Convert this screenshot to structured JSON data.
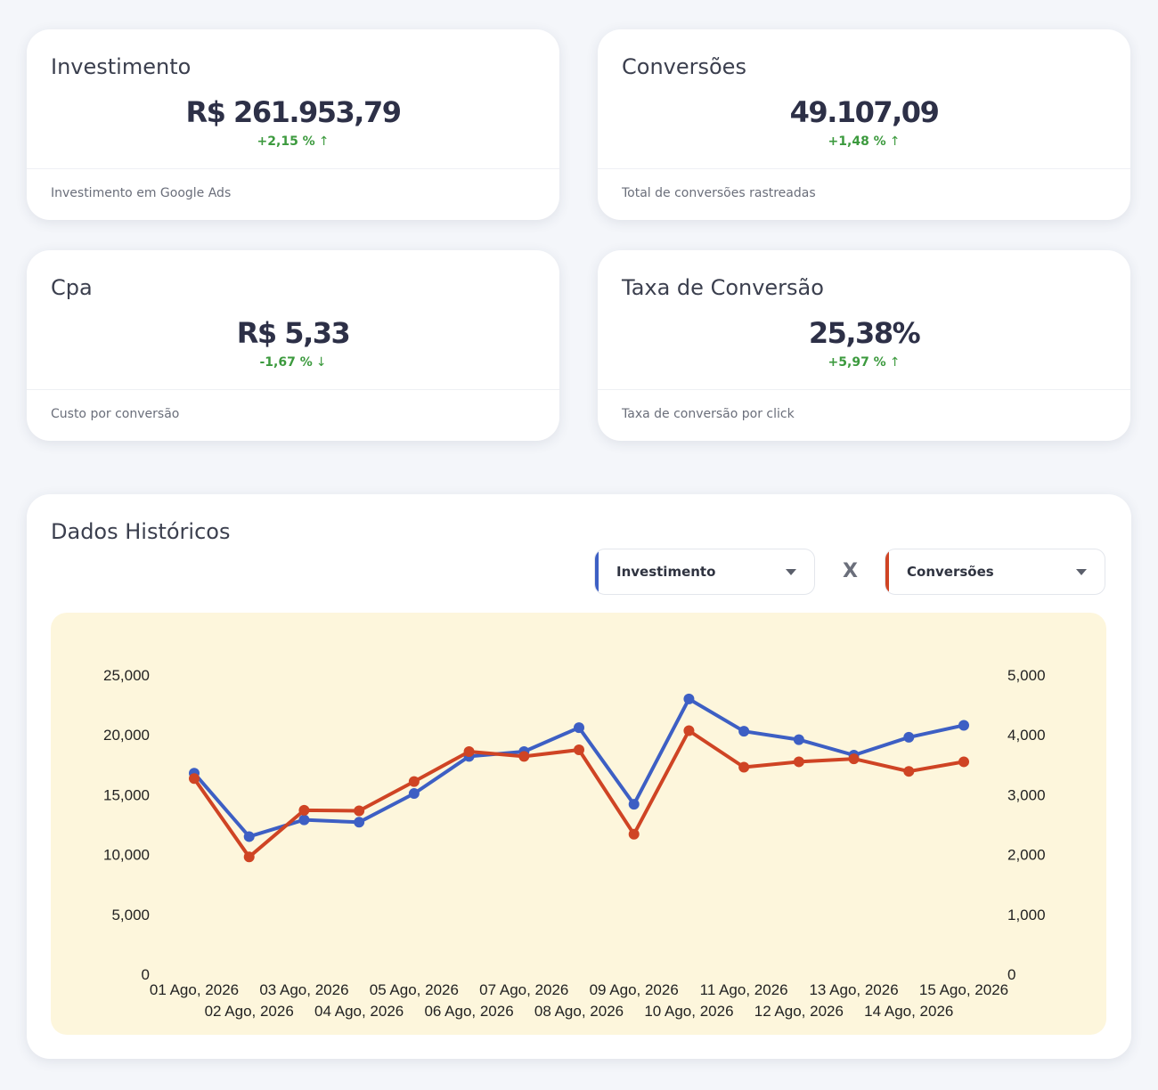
{
  "kpis": [
    {
      "title": "Investimento",
      "value": "R$ 261.953,79",
      "delta": "+2,15 %",
      "arrow": "↑",
      "footer": "Investimento em Google Ads"
    },
    {
      "title": "Conversões",
      "value": "49.107,09",
      "delta": "+1,48 %",
      "arrow": "↑",
      "footer": "Total de conversões rastreadas"
    },
    {
      "title": "Cpa",
      "value": "R$ 5,33",
      "delta": "-1,67 %",
      "arrow": "↓",
      "footer": "Custo por conversão"
    },
    {
      "title": "Taxa de Conversão",
      "value": "25,38%",
      "delta": "+5,97 %",
      "arrow": "↑",
      "footer": "Taxa de conversão por click"
    }
  ],
  "history": {
    "title": "Dados Históricos",
    "select_left": "Investimento",
    "separator": "X",
    "select_right": "Conversões"
  },
  "colors": {
    "left_series": "#3d5fc4",
    "right_series": "#cf4424",
    "positive": "#3c9a3e",
    "chart_bg": "#fdf6dc"
  },
  "chart_data": {
    "type": "line",
    "x": [
      "01 Ago, 2026",
      "02 Ago, 2026",
      "03 Ago, 2026",
      "04 Ago, 2026",
      "05 Ago, 2026",
      "06 Ago, 2026",
      "07 Ago, 2026",
      "08 Ago, 2026",
      "09 Ago, 2026",
      "10 Ago, 2026",
      "11 Ago, 2026",
      "12 Ago, 2026",
      "13 Ago, 2026",
      "14 Ago, 2026",
      "15 Ago, 2026"
    ],
    "y_left_ticks": [
      "0",
      "5,000",
      "10,000",
      "15,000",
      "20,000",
      "25,000"
    ],
    "y_right_ticks": [
      "0",
      "1,000",
      "2,000",
      "3,000",
      "4,000",
      "5,000"
    ],
    "ylim_left": [
      0,
      25000
    ],
    "ylim_right": [
      0,
      5000
    ],
    "series": [
      {
        "name": "Investimento",
        "axis": "left",
        "color": "#3d5fc4",
        "values": [
          16800,
          11500,
          12900,
          12700,
          15100,
          18200,
          18600,
          20600,
          14200,
          23000,
          20300,
          19600,
          18300,
          19800,
          20800
        ]
      },
      {
        "name": "Conversões",
        "axis": "right",
        "color": "#cf4424",
        "values": [
          3270,
          1960,
          2740,
          2730,
          3220,
          3720,
          3640,
          3750,
          2340,
          4070,
          3460,
          3550,
          3600,
          3390,
          3550
        ]
      }
    ],
    "grid": false,
    "legend": "none"
  }
}
